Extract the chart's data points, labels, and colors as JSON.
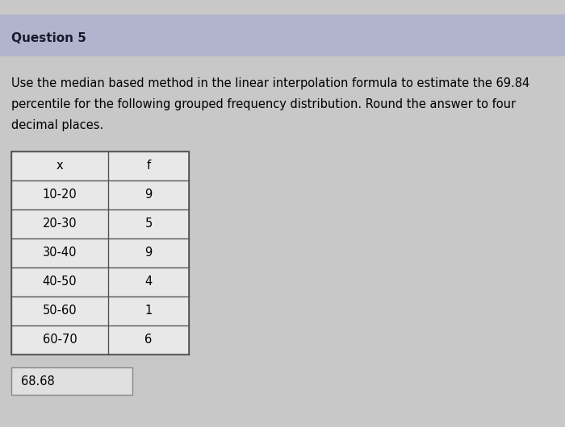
{
  "title": "Question 5",
  "question_text_line1": "Use the median based method in the linear interpolation formula to estimate the 69.84",
  "question_text_line2": "percentile for the following grouped frequency distribution. Round the answer to four",
  "question_text_line3": "decimal places.",
  "table_headers": [
    "x",
    "f"
  ],
  "table_rows": [
    [
      "10-20",
      "9"
    ],
    [
      "20-30",
      "5"
    ],
    [
      "30-40",
      "9"
    ],
    [
      "40-50",
      "4"
    ],
    [
      "50-60",
      "1"
    ],
    [
      "60-70",
      "6"
    ]
  ],
  "answer": "68.68",
  "bg_color": "#c8c8c8",
  "title_bg_color": "#b0b4cc",
  "table_bg_color": "#e8e8e8",
  "answer_box_color": "#e0e0e0",
  "title_font_size": 11,
  "body_font_size": 10.5,
  "table_font_size": 10.5
}
